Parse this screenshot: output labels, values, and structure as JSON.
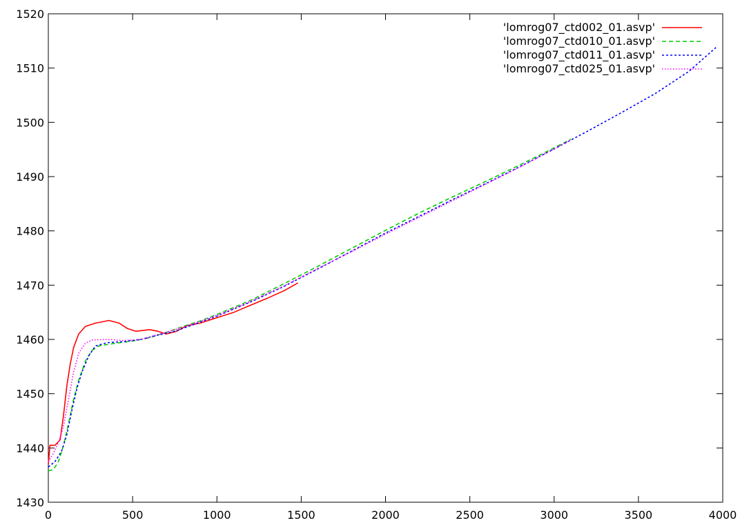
{
  "chart_data": {
    "type": "line",
    "title": "",
    "xlabel": "",
    "ylabel": "",
    "xlim": [
      0,
      4000
    ],
    "ylim": [
      1430,
      1520
    ],
    "xticks": [
      "0",
      "500",
      "1000",
      "1500",
      "2000",
      "2500",
      "3000",
      "3500",
      "4000"
    ],
    "yticks": [
      "1430",
      "1440",
      "1450",
      "1460",
      "1470",
      "1480",
      "1490",
      "1500",
      "1510",
      "1520"
    ],
    "grid": false,
    "legend_position": "top-right",
    "series": [
      {
        "name": "'lomrog07_ctd002_01.asvp'",
        "color": "#ff0000",
        "dash": "solid",
        "points": [
          [
            0,
            1437.0
          ],
          [
            10,
            1440.5
          ],
          [
            40,
            1440.5
          ],
          [
            70,
            1441.5
          ],
          [
            90,
            1446
          ],
          [
            110,
            1451.5
          ],
          [
            130,
            1455.5
          ],
          [
            150,
            1458.5
          ],
          [
            180,
            1461
          ],
          [
            220,
            1462.4
          ],
          [
            280,
            1463
          ],
          [
            360,
            1463.5
          ],
          [
            420,
            1463
          ],
          [
            470,
            1462
          ],
          [
            520,
            1461.5
          ],
          [
            600,
            1461.8
          ],
          [
            650,
            1461.5
          ],
          [
            700,
            1461
          ],
          [
            760,
            1461.5
          ],
          [
            820,
            1462.5
          ],
          [
            900,
            1463
          ],
          [
            1000,
            1464
          ],
          [
            1100,
            1465
          ],
          [
            1200,
            1466.3
          ],
          [
            1300,
            1467.6
          ],
          [
            1400,
            1469
          ],
          [
            1480,
            1470.4
          ]
        ]
      },
      {
        "name": "'lomrog07_ctd010_01.asvp'",
        "color": "#00cc00",
        "dash": "dashed",
        "points": [
          [
            0,
            1435.8
          ],
          [
            30,
            1436.0
          ],
          [
            60,
            1437.5
          ],
          [
            90,
            1440.5
          ],
          [
            120,
            1444.5
          ],
          [
            150,
            1449
          ],
          [
            180,
            1452.5
          ],
          [
            220,
            1456
          ],
          [
            260,
            1458
          ],
          [
            300,
            1458.8
          ],
          [
            400,
            1459.3
          ],
          [
            500,
            1459.7
          ],
          [
            600,
            1460.3
          ],
          [
            700,
            1461.3
          ],
          [
            800,
            1462.4
          ],
          [
            900,
            1463.4
          ],
          [
            1000,
            1464.6
          ],
          [
            1200,
            1467.2
          ],
          [
            1400,
            1470.3
          ],
          [
            1600,
            1473.5
          ],
          [
            1800,
            1476.8
          ],
          [
            2000,
            1480.1
          ],
          [
            2200,
            1483.3
          ],
          [
            2400,
            1486.3
          ],
          [
            2600,
            1489.2
          ],
          [
            2800,
            1492.2
          ],
          [
            3000,
            1495.3
          ],
          [
            3100,
            1496.9
          ]
        ]
      },
      {
        "name": "'lomrog07_ctd011_01.asvp'",
        "color": "#0000ff",
        "dash": "dotted-dash",
        "points": [
          [
            0,
            1436.5
          ],
          [
            40,
            1437.5
          ],
          [
            80,
            1439.5
          ],
          [
            110,
            1442.5
          ],
          [
            140,
            1447
          ],
          [
            170,
            1451
          ],
          [
            200,
            1454
          ],
          [
            240,
            1457
          ],
          [
            280,
            1458.8
          ],
          [
            350,
            1459.4
          ],
          [
            450,
            1459.6
          ],
          [
            550,
            1460
          ],
          [
            650,
            1460.8
          ],
          [
            750,
            1461.5
          ],
          [
            850,
            1462.6
          ],
          [
            1000,
            1464.3
          ],
          [
            1200,
            1466.9
          ],
          [
            1400,
            1469.8
          ],
          [
            1600,
            1473
          ],
          [
            1800,
            1476.3
          ],
          [
            2000,
            1479.6
          ],
          [
            2200,
            1482.7
          ],
          [
            2400,
            1485.8
          ],
          [
            2600,
            1488.8
          ],
          [
            2800,
            1491.9
          ],
          [
            3000,
            1495.1
          ],
          [
            3200,
            1498.4
          ],
          [
            3400,
            1501.8
          ],
          [
            3600,
            1505.3
          ],
          [
            3800,
            1509.4
          ],
          [
            3960,
            1513.8
          ]
        ]
      },
      {
        "name": "'lomrog07_ctd025_01.asvp'",
        "color": "#ff00ff",
        "dash": "dotted",
        "points": [
          [
            0,
            1437.5
          ],
          [
            30,
            1439
          ],
          [
            60,
            1441
          ],
          [
            90,
            1444
          ],
          [
            120,
            1449
          ],
          [
            150,
            1454
          ],
          [
            180,
            1457.5
          ],
          [
            220,
            1459.3
          ],
          [
            260,
            1459.9
          ],
          [
            350,
            1460
          ],
          [
            450,
            1459.8
          ],
          [
            550,
            1460
          ],
          [
            650,
            1460.9
          ],
          [
            750,
            1461.8
          ],
          [
            850,
            1462.8
          ],
          [
            1000,
            1464.4
          ],
          [
            1200,
            1467.0
          ],
          [
            1400,
            1469.9
          ],
          [
            1600,
            1473.1
          ],
          [
            1800,
            1476.2
          ],
          [
            2000,
            1479.4
          ],
          [
            2200,
            1482.5
          ],
          [
            2400,
            1485.6
          ],
          [
            2600,
            1488.7
          ],
          [
            2800,
            1491.8
          ],
          [
            3000,
            1495.1
          ],
          [
            3100,
            1496.8
          ]
        ]
      }
    ]
  }
}
